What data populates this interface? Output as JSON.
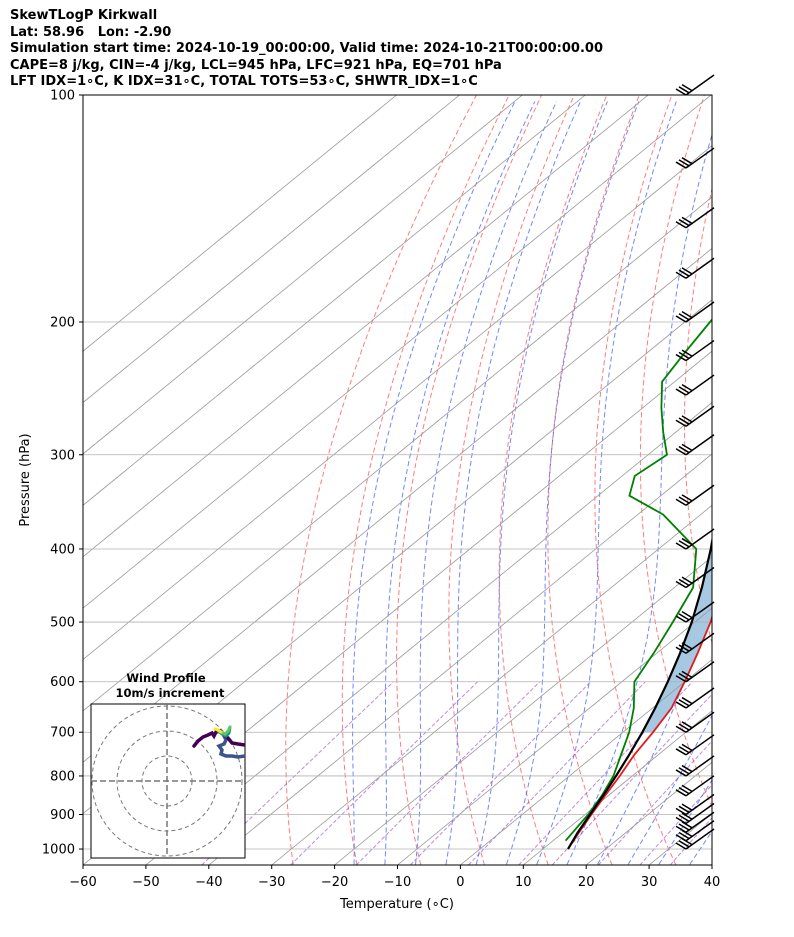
{
  "header": {
    "line1": "SkewTLogP Kirkwall",
    "line2": "Lat: 58.96   Lon: -2.90",
    "line3": "Simulation start time: 2024-10-19_00:00:00, Valid time: 2024-10-21T00:00:00.00",
    "line4": "CAPE=8 j/kg, CIN=-4 j/kg, LCL=945 hPa, LFC=921 hPa, EQ=701 hPa",
    "line5": "LFT IDX=1∘C, K IDX=31∘C, TOTAL TOTS=53∘C, SHWTR_IDX=1∘C"
  },
  "colors": {
    "temperature": "#e31a1c",
    "dewpoint": "#008000",
    "parcel": "#000000",
    "cape_fill": "#a6c8e0",
    "dry_adiabat": "#ff5050",
    "moist_adiabat": "#4060ff",
    "mixing_ratio": "#9040c0",
    "isotherm": "#999999"
  },
  "chart_data": {
    "type": "line",
    "xlabel": "Temperature (∘C)",
    "ylabel": "Pressure (hPa)",
    "xlim": [
      -60,
      40
    ],
    "ylim": [
      1050,
      100
    ],
    "yscale": "log",
    "grid": true,
    "xticks": [
      -60,
      -50,
      -40,
      -30,
      -20,
      -10,
      0,
      10,
      20,
      30,
      40
    ],
    "yticks": [
      1000,
      900,
      800,
      700,
      600,
      500,
      400,
      300,
      200,
      100
    ],
    "series": [
      {
        "key": "temperature",
        "points": [
          [
            1000,
            14
          ],
          [
            950,
            12.5
          ],
          [
            900,
            11
          ],
          [
            850,
            9.5
          ],
          [
            800,
            8
          ],
          [
            750,
            6.2
          ],
          [
            700,
            4.8
          ],
          [
            650,
            3
          ],
          [
            600,
            0
          ],
          [
            550,
            -3.5
          ],
          [
            500,
            -7.5
          ],
          [
            450,
            -12.5
          ],
          [
            400,
            -18
          ],
          [
            350,
            -26
          ],
          [
            300,
            -35
          ],
          [
            250,
            -47
          ],
          [
            200,
            -55
          ],
          [
            150,
            -55.5
          ],
          [
            120,
            -53
          ],
          [
            110,
            -51.5
          ],
          [
            100,
            -52
          ]
        ]
      },
      {
        "key": "dewpoint",
        "points": [
          [
            975,
            12
          ],
          [
            950,
            11.5
          ],
          [
            900,
            10.5
          ],
          [
            850,
            9
          ],
          [
            800,
            7
          ],
          [
            700,
            1
          ],
          [
            650,
            -3
          ],
          [
            600,
            -8
          ],
          [
            550,
            -10.5
          ],
          [
            500,
            -13.5
          ],
          [
            450,
            -17
          ],
          [
            400,
            -24
          ],
          [
            360,
            -36
          ],
          [
            340,
            -45
          ],
          [
            320,
            -48
          ],
          [
            300,
            -47
          ],
          [
            280,
            -52
          ],
          [
            260,
            -57
          ],
          [
            240,
            -62
          ],
          [
            220,
            -64
          ],
          [
            200,
            -66
          ],
          [
            180,
            -68
          ],
          [
            175,
            -70
          ],
          [
            160,
            -73
          ],
          [
            140,
            -78
          ],
          [
            120,
            -82
          ],
          [
            100,
            -85
          ]
        ]
      },
      {
        "key": "parcel",
        "points": [
          [
            1000,
            14
          ],
          [
            950,
            12.3
          ],
          [
            900,
            10.8
          ],
          [
            850,
            9.2
          ],
          [
            800,
            7.4
          ],
          [
            750,
            5.4
          ],
          [
            700,
            3.1
          ],
          [
            650,
            0.4
          ],
          [
            600,
            -2.7
          ],
          [
            550,
            -6.3
          ],
          [
            500,
            -10.5
          ],
          [
            450,
            -15.6
          ],
          [
            400,
            -21.7
          ],
          [
            350,
            -29
          ],
          [
            300,
            -38
          ],
          [
            250,
            -49
          ],
          [
            200,
            -62
          ],
          [
            150,
            -78
          ],
          [
            120,
            -90
          ],
          [
            100,
            -100
          ]
        ]
      }
    ],
    "wind_barbs": {
      "pressure_hpa": [
        1000,
        975,
        950,
        925,
        900,
        850,
        800,
        750,
        700,
        650,
        600,
        550,
        500,
        450,
        400,
        350,
        300,
        275,
        250,
        225,
        200,
        175,
        150,
        125,
        100
      ]
    },
    "inset": {
      "title_line1": "Wind Profile",
      "title_line2": "10m/s increment"
    }
  }
}
